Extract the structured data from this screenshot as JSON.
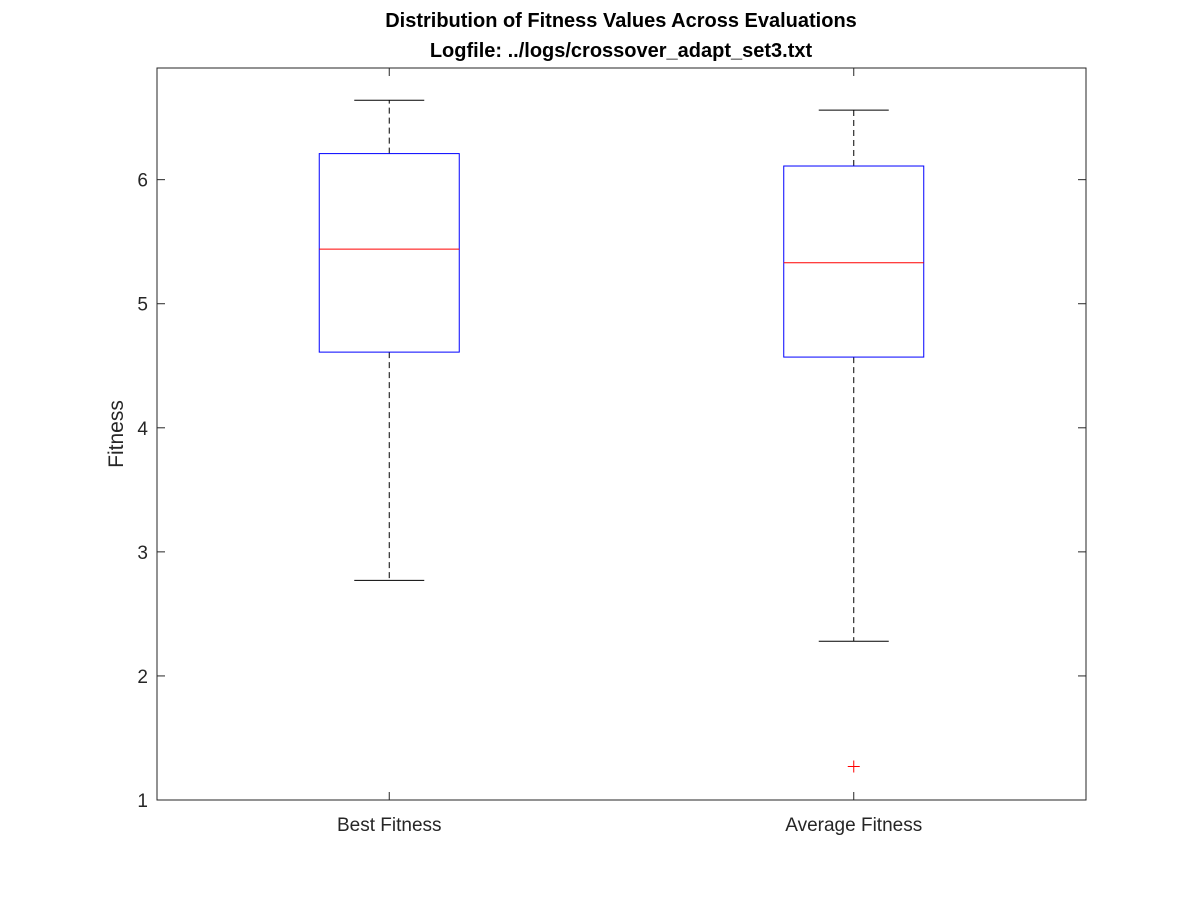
{
  "chart_data": {
    "type": "boxplot",
    "title": "Distribution of Fitness Values Across Evaluations",
    "subtitle": "Logfile: ../logs/crossover_adapt_set3.txt",
    "xlabel": "",
    "ylabel": "Fitness",
    "ylim": [
      1,
      6.9
    ],
    "yticks": [
      1,
      2,
      3,
      4,
      5,
      6
    ],
    "grid": false,
    "categories": [
      "Best Fitness",
      "Average Fitness"
    ],
    "series": [
      {
        "whisker_low": 2.77,
        "q1": 4.61,
        "median": 5.44,
        "q3": 6.21,
        "whisker_high": 6.64,
        "outliers": []
      },
      {
        "whisker_low": 2.28,
        "q1": 4.57,
        "median": 5.33,
        "q3": 6.11,
        "whisker_high": 6.56,
        "outliers": [
          1.27
        ]
      }
    ],
    "colors": {
      "box": "#0000ff",
      "median": "#ff0000",
      "whisker": "#000000",
      "outlier": "#ff0000",
      "axes": "#262626"
    }
  }
}
